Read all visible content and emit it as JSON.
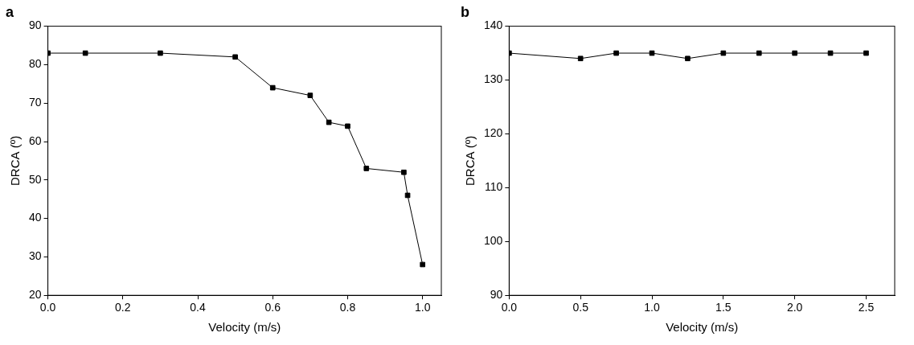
{
  "chart_data": [
    {
      "type": "line",
      "title": "a",
      "x_label": "Velocity (m/s)",
      "y_label": "DRCA (º)",
      "x": [
        0,
        0.1,
        0.3,
        0.5,
        0.6,
        0.7,
        0.75,
        0.8,
        0.85,
        0.95,
        0.96,
        1.0
      ],
      "values": [
        83,
        83,
        83,
        82,
        74,
        72,
        65,
        64,
        53,
        52,
        46,
        28
      ],
      "color": "#000000",
      "marker": "square",
      "line_style": "solid",
      "xlim": [
        0,
        1.05
      ],
      "xticks": [
        {
          "value": 0,
          "label": "0.0"
        },
        {
          "value": 0.2,
          "label": "0.2"
        },
        {
          "value": 0.4,
          "label": "0.4"
        },
        {
          "value": 0.6,
          "label": "0.6"
        },
        {
          "value": 0.8,
          "label": "0.8"
        },
        {
          "value": 1.0,
          "label": "1.0"
        }
      ],
      "ylim": [
        20,
        90
      ],
      "yticks": [
        20,
        30,
        40,
        50,
        60,
        70,
        80,
        90
      ],
      "grid": false
    },
    {
      "type": "line",
      "title": "b",
      "x_label": "Velocity (m/s)",
      "y_label": "DRCA (º)",
      "x": [
        0,
        0.5,
        0.75,
        1.0,
        1.25,
        1.5,
        1.75,
        2.0,
        2.25,
        2.5
      ],
      "values": [
        135,
        134,
        135,
        135,
        134,
        135,
        135,
        135,
        135,
        135
      ],
      "color": "#000000",
      "marker": "square",
      "line_style": "solid",
      "xlim": [
        0,
        2.7
      ],
      "xticks": [
        {
          "value": 0,
          "label": "0.0"
        },
        {
          "value": 0.5,
          "label": "0.5"
        },
        {
          "value": 1.0,
          "label": "1.0"
        },
        {
          "value": 1.5,
          "label": "1.5"
        },
        {
          "value": 2.0,
          "label": "2.0"
        },
        {
          "value": 2.5,
          "label": "2.5"
        }
      ],
      "ylim": [
        90,
        140
      ],
      "yticks": [
        90,
        100,
        110,
        120,
        130,
        140
      ],
      "grid": false
    }
  ]
}
